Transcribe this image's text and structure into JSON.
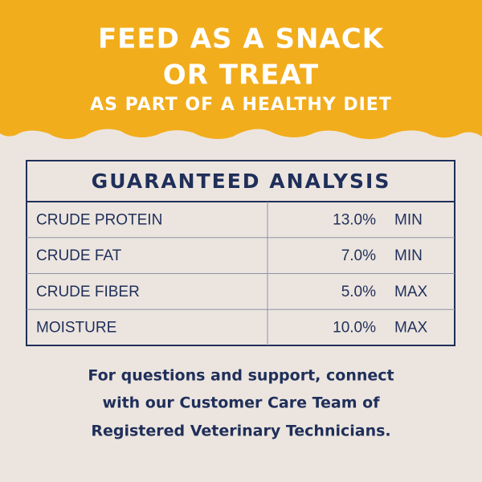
{
  "header": {
    "title_lines": [
      "FEED AS A SNACK",
      "OR TREAT"
    ],
    "subtitle": "AS PART OF A HEALTHY DIET"
  },
  "table": {
    "title": "GUARANTEED ANALYSIS",
    "rows": [
      [
        "CRUDE PROTEIN",
        "13.0%",
        "MIN"
      ],
      [
        "CRUDE FAT",
        "7.0%",
        "MIN"
      ],
      [
        "CRUDE FIBER",
        "5.0%",
        "MAX"
      ],
      [
        "MOISTURE",
        "10.0%",
        "MAX"
      ]
    ]
  },
  "footer": {
    "lines": [
      "For questions and support, connect",
      "with our Customer Care Team of",
      "Registered Veterinary Technicians."
    ]
  }
}
